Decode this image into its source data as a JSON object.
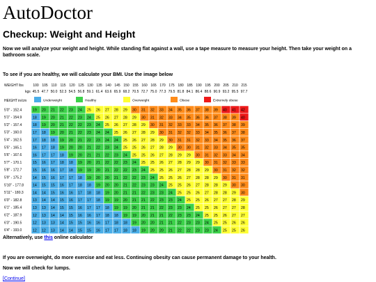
{
  "site": {
    "logo": "AutoDoctor"
  },
  "page": {
    "heading": "Checkup: Weight and Height",
    "intro": "Now we will analyze your weight and height. While standing flat against a wall, use a tape measure to measure your height. Then take your weight on a bathroom scale.",
    "bmi_prompt": "To see if you are healthy, we will calculate your BMI. Use the image below",
    "alt_prefix": "Alternatively, use ",
    "alt_link": "this",
    "alt_suffix": " online calculator",
    "advice": "If you are overweight, do more exercise and eat less. Continuing obesity can cause permanent damage to your health.",
    "lumps": "Now we will check for lumps.",
    "continue_label": "[Continue]"
  },
  "chart_data": {
    "type": "table",
    "weight_label": "WEIGHT lbs",
    "kgs_label": "kgs",
    "height_label": "HEIGHT in/cm",
    "weights_lbs": [
      "100",
      "105",
      "110",
      "115",
      "120",
      "125",
      "130",
      "135",
      "140",
      "145",
      "150",
      "155",
      "160",
      "165",
      "170",
      "175",
      "180",
      "185",
      "190",
      "195",
      "200",
      "205",
      "210",
      "215"
    ],
    "weights_kgs": [
      "45.5",
      "47.7",
      "50.0",
      "52.3",
      "54.5",
      "56.8",
      "59.1",
      "61.4",
      "63.6",
      "65.9",
      "68.2",
      "70.5",
      "72.7",
      "75.0",
      "77.3",
      "79.5",
      "81.8",
      "84.1",
      "86.4",
      "88.6",
      "90.9",
      "93.2",
      "95.5",
      "97.7"
    ],
    "legend": [
      {
        "label": "Underweight",
        "color": "#4aaee8"
      },
      {
        "label": "Healthy",
        "color": "#3cd24a"
      },
      {
        "label": "Overweight",
        "color": "#ffff33"
      },
      {
        "label": "Obese",
        "color": "#ff8c1a"
      },
      {
        "label": "Extremely obese",
        "color": "#ee1a1a"
      }
    ],
    "heights": [
      "5'0\" - 152.4",
      "5'1\" - 154.9",
      "5'2\" - 157.4",
      "5'3\" - 160.0",
      "5'4\" - 162.5",
      "5'5\" - 165.1",
      "5'6\" - 167.6",
      "5'7\" - 170.1",
      "5'8\" - 172.7",
      "5'9\" - 175.2",
      "5'10\" - 177.8",
      "5'11\" - 180.3",
      "6'0\" - 182.8",
      "6'1\" - 185.4",
      "6'2\" - 187.9",
      "6'3\" - 190.5",
      "6'4\" - 193.0"
    ],
    "bmi": [
      [
        19,
        20,
        21,
        22,
        23,
        24,
        25,
        26,
        27,
        28,
        29,
        30,
        31,
        32,
        33,
        34,
        35,
        36,
        37,
        38,
        39,
        40,
        41,
        42
      ],
      [
        18,
        19,
        20,
        21,
        22,
        23,
        24,
        25,
        26,
        27,
        28,
        29,
        30,
        31,
        32,
        33,
        34,
        35,
        36,
        36,
        37,
        38,
        39,
        40
      ],
      [
        18,
        19,
        20,
        21,
        22,
        22,
        23,
        24,
        25,
        26,
        27,
        28,
        29,
        30,
        31,
        32,
        33,
        33,
        34,
        35,
        36,
        37,
        38,
        39
      ],
      [
        17,
        18,
        19,
        20,
        21,
        22,
        23,
        24,
        24,
        25,
        26,
        27,
        28,
        29,
        30,
        31,
        32,
        32,
        33,
        34,
        35,
        36,
        37,
        38
      ],
      [
        17,
        18,
        18,
        19,
        20,
        21,
        22,
        23,
        24,
        24,
        25,
        26,
        27,
        28,
        29,
        30,
        31,
        31,
        32,
        33,
        34,
        35,
        36,
        37
      ],
      [
        16,
        17,
        18,
        19,
        20,
        20,
        21,
        22,
        23,
        24,
        25,
        25,
        26,
        27,
        28,
        29,
        30,
        30,
        31,
        32,
        33,
        34,
        35,
        35
      ],
      [
        16,
        17,
        17,
        18,
        19,
        20,
        21,
        21,
        22,
        23,
        24,
        25,
        25,
        26,
        27,
        28,
        29,
        29,
        30,
        31,
        32,
        33,
        34,
        34
      ],
      [
        15,
        16,
        17,
        18,
        18,
        19,
        20,
        21,
        22,
        22,
        23,
        24,
        25,
        25,
        26,
        27,
        28,
        29,
        29,
        30,
        31,
        32,
        33,
        33
      ],
      [
        15,
        16,
        16,
        17,
        18,
        19,
        19,
        20,
        21,
        22,
        22,
        23,
        24,
        25,
        25,
        26,
        27,
        28,
        28,
        29,
        30,
        31,
        32,
        32
      ],
      [
        14,
        15,
        16,
        17,
        17,
        18,
        19,
        20,
        20,
        21,
        22,
        22,
        23,
        24,
        25,
        25,
        26,
        27,
        28,
        28,
        29,
        30,
        31,
        31
      ],
      [
        14,
        15,
        15,
        16,
        17,
        18,
        18,
        19,
        20,
        20,
        21,
        22,
        23,
        23,
        24,
        25,
        25,
        26,
        27,
        28,
        28,
        29,
        30,
        30
      ],
      [
        14,
        14,
        15,
        16,
        16,
        17,
        18,
        18,
        19,
        20,
        21,
        21,
        22,
        23,
        23,
        24,
        25,
        25,
        26,
        27,
        28,
        28,
        29,
        30
      ],
      [
        13,
        14,
        14,
        15,
        16,
        17,
        17,
        18,
        19,
        19,
        20,
        21,
        21,
        22,
        23,
        23,
        24,
        25,
        25,
        26,
        27,
        27,
        28,
        29
      ],
      [
        13,
        13,
        14,
        15,
        15,
        16,
        17,
        17,
        18,
        19,
        19,
        20,
        21,
        21,
        22,
        23,
        23,
        24,
        25,
        25,
        26,
        27,
        27,
        28
      ],
      [
        12,
        13,
        14,
        14,
        15,
        16,
        16,
        17,
        18,
        18,
        19,
        19,
        20,
        21,
        21,
        22,
        23,
        23,
        24,
        25,
        25,
        26,
        27,
        27
      ],
      [
        12,
        13,
        13,
        14,
        15,
        15,
        16,
        16,
        17,
        18,
        18,
        19,
        20,
        20,
        21,
        21,
        22,
        23,
        23,
        24,
        25,
        25,
        26,
        26
      ],
      [
        12,
        12,
        13,
        14,
        14,
        15,
        15,
        16,
        17,
        17,
        18,
        18,
        19,
        20,
        20,
        21,
        22,
        22,
        23,
        23,
        24,
        25,
        25,
        26
      ]
    ]
  }
}
